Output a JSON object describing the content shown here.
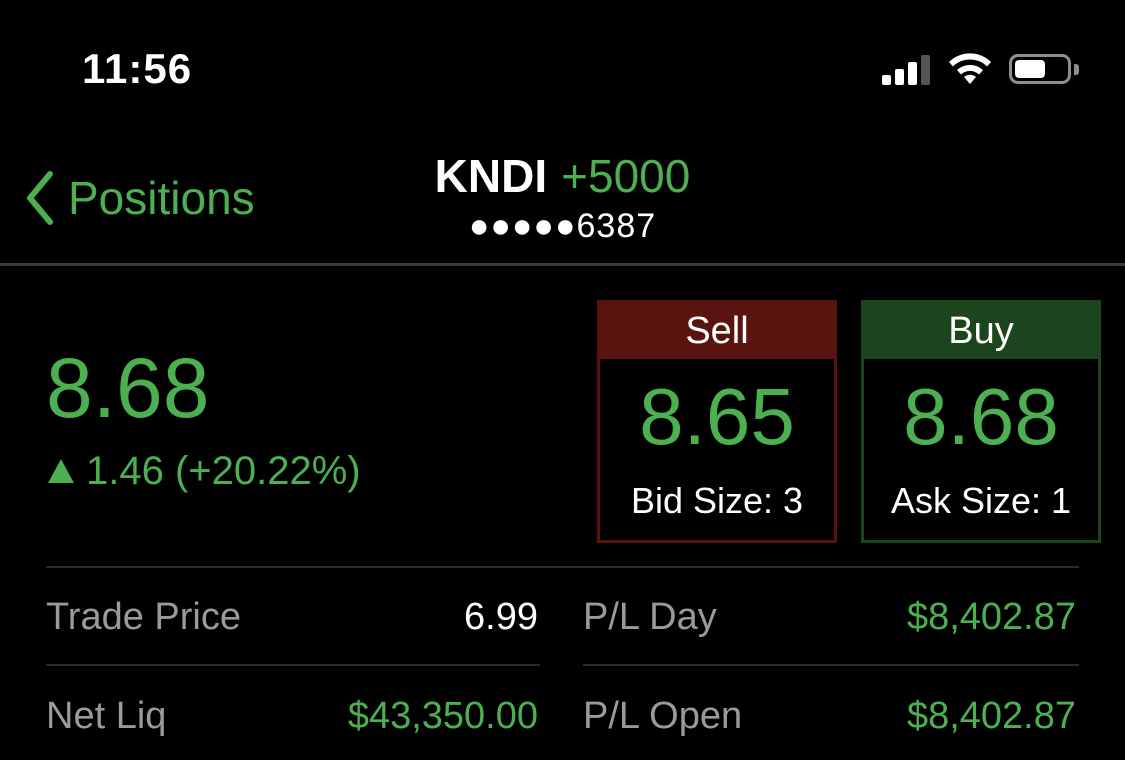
{
  "status_bar": {
    "time": "11:56",
    "icons": [
      "cellular-signal-icon",
      "wifi-icon",
      "battery-icon"
    ]
  },
  "nav": {
    "back_label": "Positions",
    "symbol": "KNDI",
    "quantity": "+5000",
    "account": "●●●●●6387"
  },
  "quote": {
    "last": "8.68",
    "change": "1.46 (+20.22%)",
    "direction": "up"
  },
  "sell": {
    "label": "Sell",
    "price": "8.65",
    "size_label": "Bid Size: 3"
  },
  "buy": {
    "label": "Buy",
    "price": "8.68",
    "size_label": "Ask Size: 1"
  },
  "stats": {
    "trade_price_label": "Trade Price",
    "trade_price": "6.99",
    "net_liq_label": "Net Liq",
    "net_liq": "$43,350.00",
    "pl_day_label": "P/L Day",
    "pl_day": "$8,402.87",
    "pl_open_label": "P/L Open",
    "pl_open": "$8,402.87"
  },
  "colors": {
    "accent_green": "#4caf50",
    "sell_red": "#5a1410",
    "buy_green": "#1c451d",
    "background": "#000000"
  }
}
